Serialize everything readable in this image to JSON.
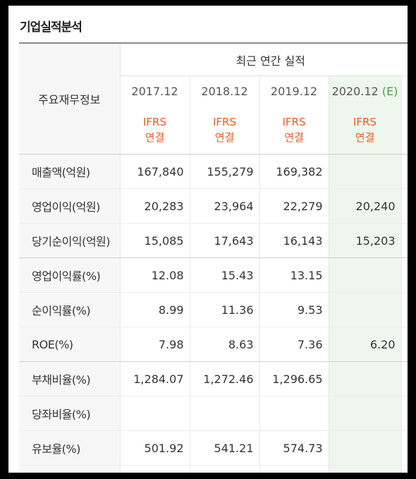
{
  "section_title": "기업실적분석",
  "table": {
    "row_header_label": "주요재무정보",
    "group_header": "최근 연간 실적",
    "columns": [
      {
        "year": "2017.12",
        "standard": "IFRS",
        "basis": "연결",
        "estimate_mark": ""
      },
      {
        "year": "2018.12",
        "standard": "IFRS",
        "basis": "연결",
        "estimate_mark": ""
      },
      {
        "year": "2019.12",
        "standard": "IFRS",
        "basis": "연결",
        "estimate_mark": ""
      },
      {
        "year": "2020.12",
        "standard": "IFRS",
        "basis": "연결",
        "estimate_mark": "(E)"
      }
    ],
    "rows": [
      {
        "label": "매출액(억원)",
        "values": [
          "167,840",
          "155,279",
          "169,382",
          ""
        ]
      },
      {
        "label": "영업이익(억원)",
        "values": [
          "20,283",
          "23,964",
          "22,279",
          "20,240"
        ]
      },
      {
        "label": "당기순이익(억원)",
        "values": [
          "15,085",
          "17,643",
          "16,143",
          "15,203"
        ]
      },
      {
        "label": "영업이익률(%)",
        "values": [
          "12.08",
          "15.43",
          "13.15",
          ""
        ]
      },
      {
        "label": "순이익률(%)",
        "values": [
          "8.99",
          "11.36",
          "9.53",
          ""
        ]
      },
      {
        "label": "ROE(%)",
        "values": [
          "7.98",
          "8.63",
          "7.36",
          "6.20"
        ]
      },
      {
        "label": "부채비율(%)",
        "values": [
          "1,284.07",
          "1,272.46",
          "1,296.65",
          ""
        ]
      },
      {
        "label": "당좌비율(%)",
        "values": [
          "",
          "",
          "",
          ""
        ]
      },
      {
        "label": "유보율(%)",
        "values": [
          "501.92",
          "541.21",
          "574.73",
          ""
        ]
      }
    ]
  },
  "colors": {
    "ifrs_orange": "#f05a23",
    "estimate_bg": "#eef7ee",
    "label_bg": "#f7f7f7"
  }
}
